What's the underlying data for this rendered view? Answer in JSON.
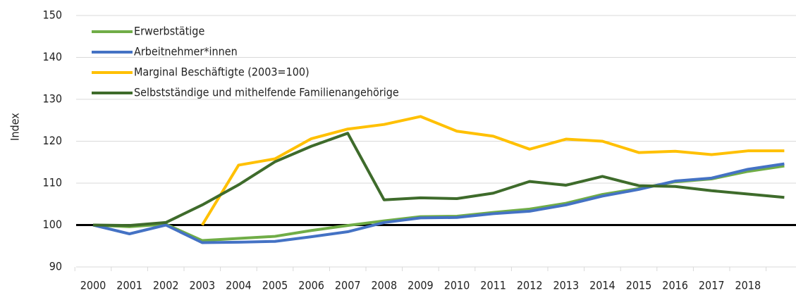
{
  "chart_data": {
    "type": "line",
    "y_label": "Index",
    "categories": [
      "2000",
      "2001",
      "2002",
      "2003",
      "2004",
      "2005",
      "2006",
      "2007",
      "2008",
      "2009",
      "2010",
      "2011",
      "2012",
      "2013",
      "2014",
      "2015",
      "2016",
      "2017",
      "2018",
      null
    ],
    "series": [
      {
        "name": "Erwerbstätige",
        "color": "#70ad47",
        "values": [
          100,
          99.6,
          100.2,
          96.3,
          96.8,
          97.3,
          98.7,
          99.9,
          101,
          102,
          102.1,
          103,
          103.8,
          105.2,
          107.3,
          108.7,
          110.3,
          111,
          112.8,
          114.1
        ]
      },
      {
        "name": "Arbeitnehmer*innen",
        "color": "#4472c4",
        "values": [
          100,
          97.9,
          100,
          95.8,
          95.9,
          96.1,
          97.2,
          98.4,
          100.6,
          101.7,
          101.8,
          102.7,
          103.3,
          104.8,
          106.9,
          108.5,
          110.5,
          111.2,
          113.3,
          114.6
        ]
      },
      {
        "name": "Marginal Beschäftigte (2003=100)",
        "color": "#ffc000",
        "values": [
          null,
          null,
          null,
          100,
          114.3,
          115.8,
          120.6,
          122.9,
          124,
          125.9,
          122.4,
          121.2,
          118.1,
          120.5,
          120,
          117.3,
          117.6,
          116.8,
          117.7,
          117.7
        ]
      },
      {
        "name": "Selbstständige und mithelfende Familienangehörige",
        "color": "#3e6b2b",
        "values": [
          100,
          99.9,
          100.6,
          104.8,
          109.6,
          115.1,
          118.8,
          121.9,
          106,
          106.5,
          106.3,
          107.6,
          110.4,
          109.5,
          111.6,
          109.4,
          109.2,
          108.2,
          107.4,
          106.6
        ]
      }
    ],
    "reference_line": 100,
    "ylim": [
      90,
      150
    ],
    "yticks": [
      90,
      100,
      110,
      120,
      130,
      140,
      150
    ],
    "grid": true,
    "legend": "top-left"
  }
}
